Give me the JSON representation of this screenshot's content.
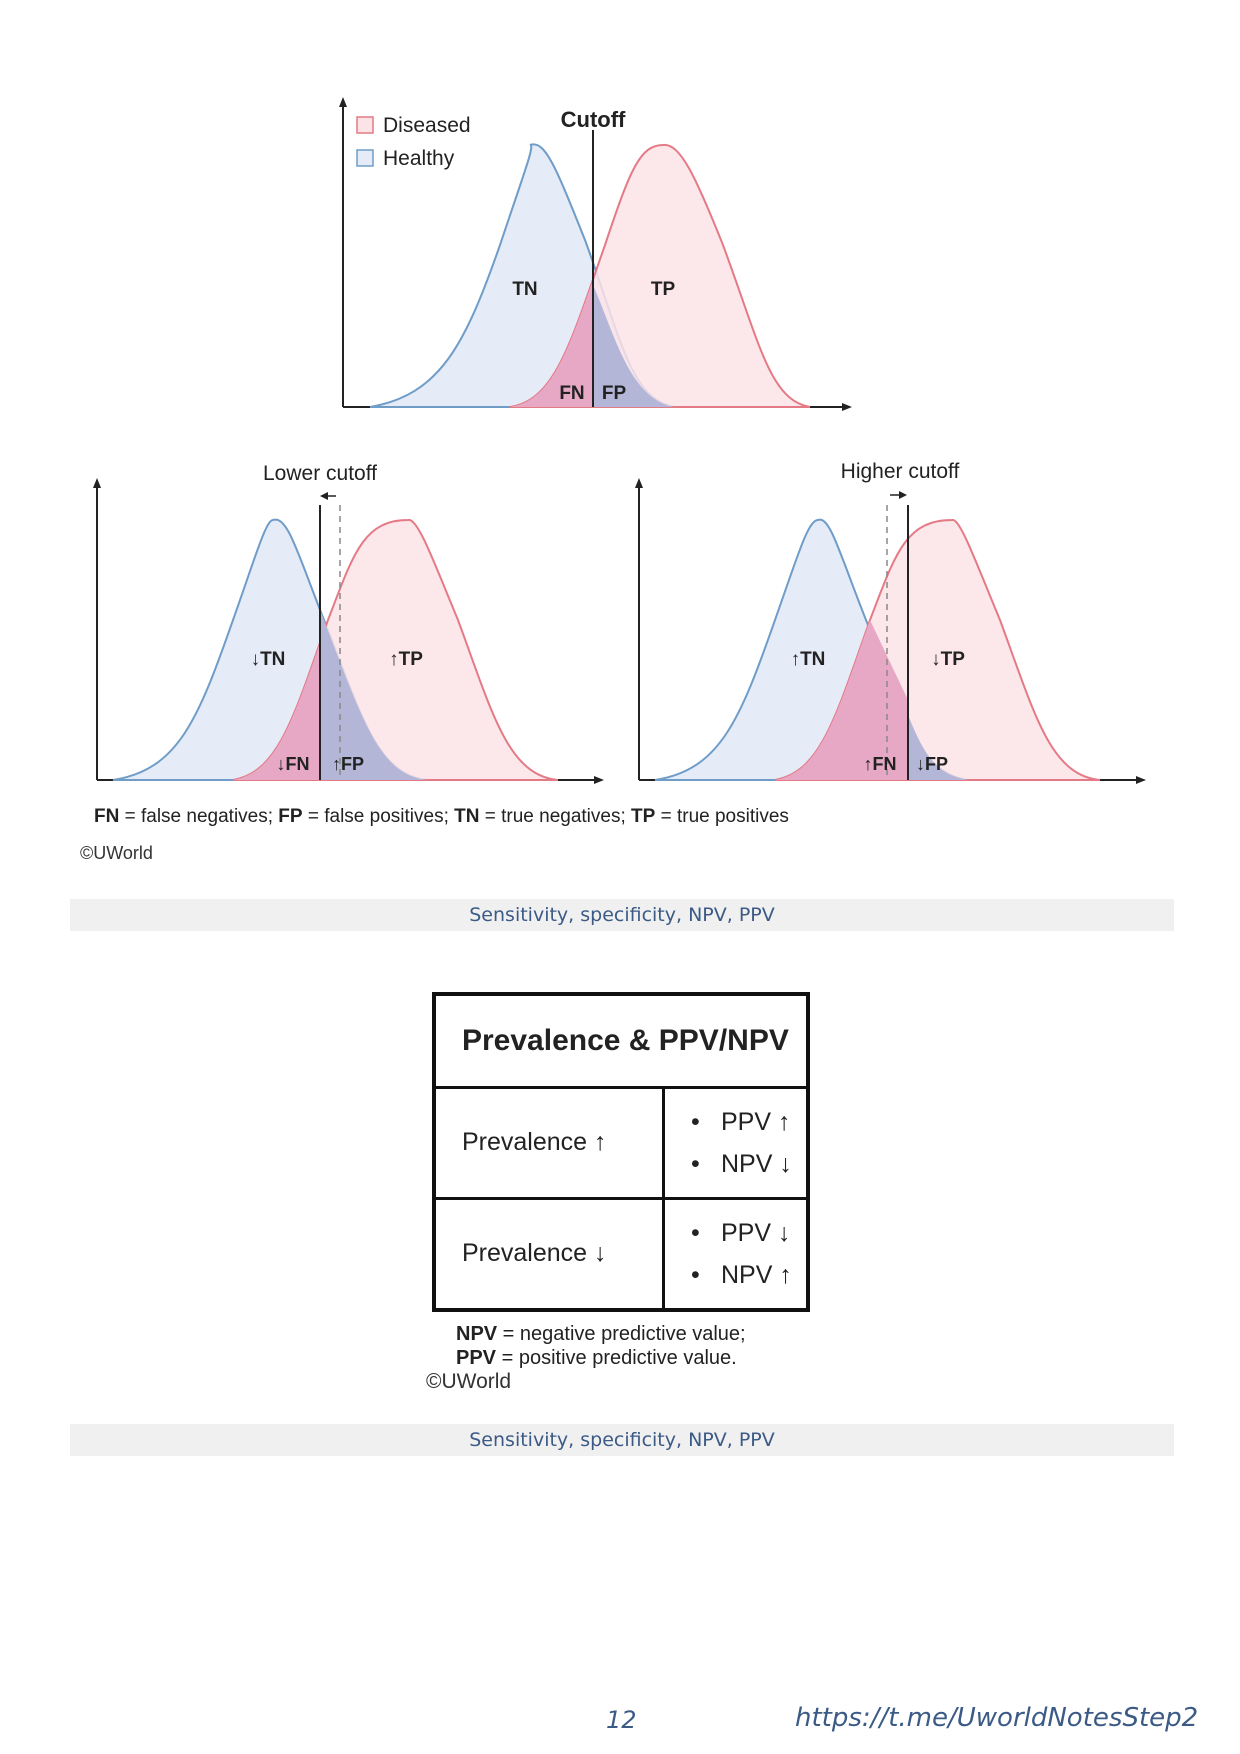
{
  "figure1": {
    "top_chart": {
      "legend": [
        "Diseased",
        "Healthy"
      ],
      "cutoff_label": "Cutoff",
      "labels": {
        "tn": "TN",
        "tp": "TP",
        "fn": "FN",
        "fp": "FP"
      }
    },
    "lower_chart": {
      "title": "Lower cutoff",
      "labels": {
        "tn": "↓TN",
        "tp": "↑TP",
        "fn": "↓FN",
        "fp": "↑FP"
      }
    },
    "higher_chart": {
      "title": "Higher cutoff",
      "labels": {
        "tn": "↑TN",
        "tp": "↓TP",
        "fn": "↑FN",
        "fp": "↓FP"
      }
    },
    "key": {
      "fn_abbr": "FN",
      "fn_def": " = false negatives; ",
      "fp_abbr": "FP",
      "fp_def": " = false positives; ",
      "tn_abbr": "TN",
      "tn_def": " = true negatives; ",
      "tp_abbr": "TP",
      "tp_def": " = true positives"
    },
    "copyright": "©UWorld",
    "caption": "Sensitivity, specificity, NPV, PPV"
  },
  "figure2": {
    "title": "Prevalence & PPV/NPV",
    "rows": [
      {
        "label": "Prevalence ↑",
        "values": [
          "PPV ↑",
          "NPV ↓"
        ]
      },
      {
        "label": "Prevalence ↓",
        "values": [
          "PPV ↓",
          "NPV ↑"
        ]
      }
    ],
    "notes": {
      "npv_abbr": "NPV",
      "npv_def": " = negative predictive value;",
      "ppv_abbr": "PPV",
      "ppv_def": " = positive predictive value."
    },
    "copyright": "©UWorld",
    "caption": "Sensitivity, specificity, NPV, PPV"
  },
  "footer": {
    "page_number": "12",
    "link": "https://t.me/UworldNotesStep2"
  },
  "colors": {
    "diseased_fill": "#fbe3e6",
    "diseased_stroke": "#e47a86",
    "healthy_fill": "#e6ebf8",
    "healthy_stroke": "#6f9dc8",
    "fn_fill": "#e6a8c4",
    "fp_fill": "#b4b6d8"
  }
}
